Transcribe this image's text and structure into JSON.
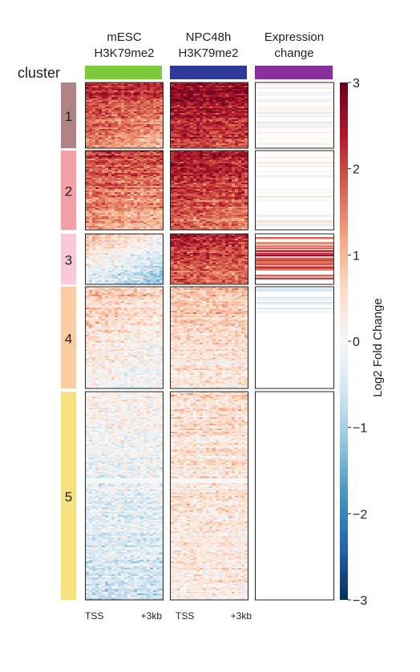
{
  "figure": {
    "cluster_label": "cluster",
    "columns": [
      {
        "id": "mesc",
        "title_line1": "mESC",
        "title_line2": "H3K79me2",
        "color": "#7ccb3a"
      },
      {
        "id": "npc48h",
        "title_line1": "NPC48h",
        "title_line2": "H3K79me2",
        "color": "#2d3a98"
      },
      {
        "id": "expression",
        "title_line1": "Expression",
        "title_line2": "change",
        "color": "#8a2f9e"
      }
    ],
    "clusters": [
      {
        "label": "1",
        "color": "#b08384",
        "rows": 160
      },
      {
        "label": "2",
        "color": "#f4a0a8",
        "rows": 200
      },
      {
        "label": "3",
        "color": "#f9c9d5",
        "rows": 123
      },
      {
        "label": "4",
        "color": "#f9cda1",
        "rows": 245
      },
      {
        "label": "5",
        "color": "#f7e07f",
        "rows": 510
      }
    ],
    "x_ticks": [
      "TSS",
      "+3kb",
      "TSS",
      "+3kb"
    ],
    "colorbar": {
      "label": "Log2 Fold Change",
      "min": -3,
      "max": 3,
      "ticks": [
        "3",
        "2",
        "1",
        "0",
        "−1",
        "−2",
        "−3"
      ],
      "colormap": "RdBu_r"
    }
  }
}
